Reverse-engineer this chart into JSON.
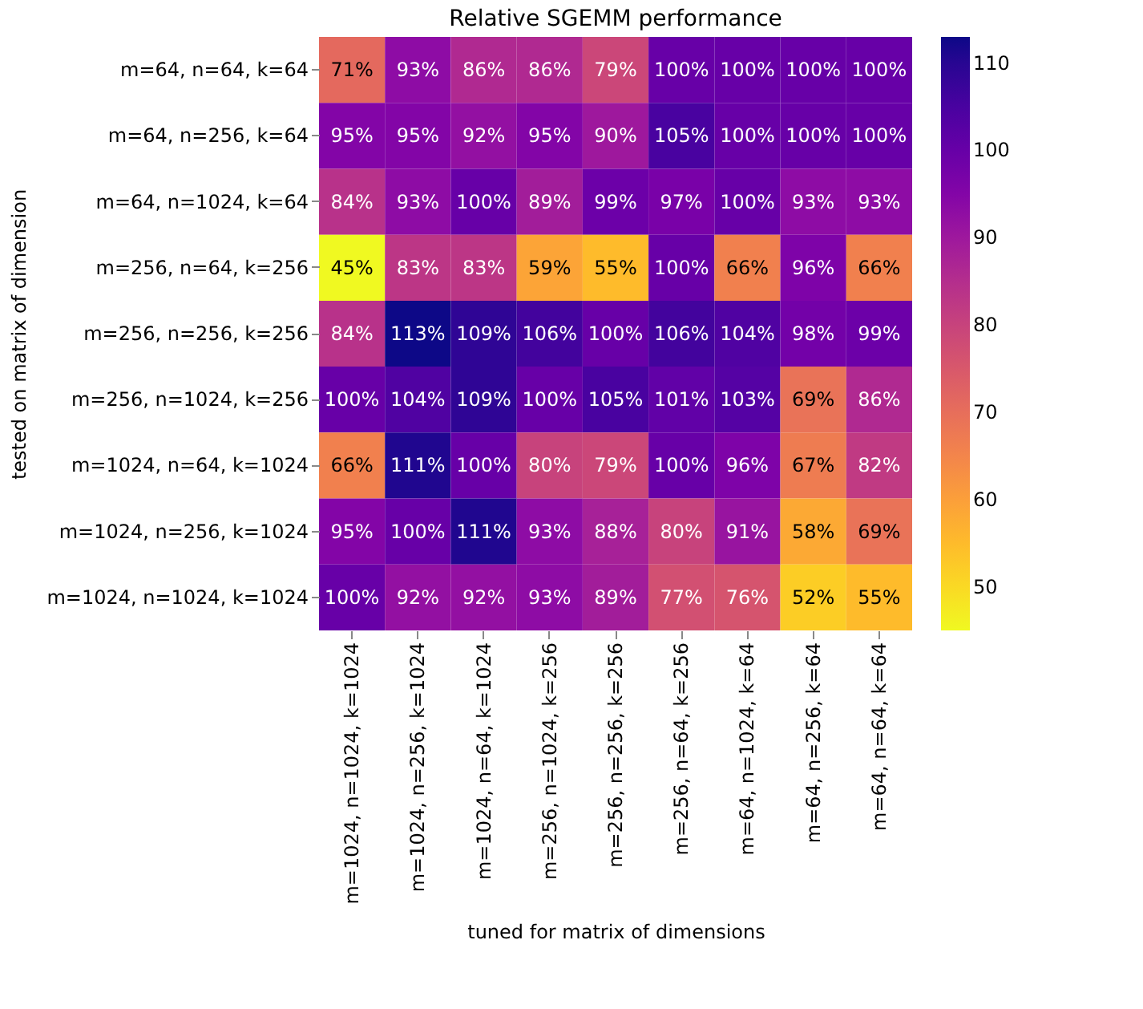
{
  "chart_data": {
    "type": "heatmap",
    "title": "Relative SGEMM performance",
    "xlabel": "tuned for matrix of dimensions",
    "ylabel": "tested on matrix of dimension",
    "categories": [
      "m=1024, n=1024, k=1024",
      "m=1024, n=256, k=1024",
      "m=1024, n=64, k=1024",
      "m=256, n=1024, k=256",
      "m=256, n=256, k=256",
      "m=256, n=64, k=256",
      "m=64, n=1024, k=64",
      "m=64, n=256, k=64",
      "m=64, n=64, k=64"
    ],
    "y_categories": [
      "m=64, n=64, k=64",
      "m=64, n=256, k=64",
      "m=64, n=1024, k=64",
      "m=256, n=64, k=256",
      "m=256, n=256, k=256",
      "m=256, n=1024, k=256",
      "m=1024, n=64, k=1024",
      "m=1024, n=256, k=1024",
      "m=1024, n=1024, k=1024"
    ],
    "cells": [
      [
        71,
        93,
        86,
        86,
        79,
        100,
        100,
        100,
        100
      ],
      [
        95,
        95,
        92,
        95,
        90,
        105,
        100,
        100,
        100
      ],
      [
        84,
        93,
        100,
        89,
        99,
        97,
        100,
        93,
        93
      ],
      [
        45,
        83,
        83,
        59,
        55,
        100,
        66,
        96,
        66
      ],
      [
        84,
        113,
        109,
        106,
        100,
        106,
        104,
        98,
        99
      ],
      [
        100,
        104,
        109,
        100,
        105,
        101,
        103,
        69,
        86
      ],
      [
        66,
        111,
        100,
        80,
        79,
        100,
        96,
        67,
        82
      ],
      [
        95,
        100,
        111,
        93,
        88,
        80,
        91,
        58,
        69
      ],
      [
        100,
        92,
        92,
        93,
        89,
        77,
        76,
        52,
        55
      ]
    ],
    "cell_labels": [
      [
        "71%",
        "93%",
        "86%",
        "86%",
        "79%",
        "100%",
        "100%",
        "100%",
        "100%"
      ],
      [
        "95%",
        "95%",
        "92%",
        "95%",
        "90%",
        "105%",
        "100%",
        "100%",
        "100%"
      ],
      [
        "84%",
        "93%",
        "100%",
        "89%",
        "99%",
        "97%",
        "100%",
        "93%",
        "93%"
      ],
      [
        "45%",
        "83%",
        "83%",
        "59%",
        "55%",
        "100%",
        "66%",
        "96%",
        "66%"
      ],
      [
        "84%",
        "113%",
        "109%",
        "106%",
        "100%",
        "106%",
        "104%",
        "98%",
        "99%"
      ],
      [
        "100%",
        "104%",
        "109%",
        "100%",
        "105%",
        "101%",
        "103%",
        "69%",
        "86%"
      ],
      [
        "66%",
        "111%",
        "100%",
        "80%",
        "79%",
        "100%",
        "96%",
        "67%",
        "82%"
      ],
      [
        "95%",
        "100%",
        "111%",
        "93%",
        "88%",
        "80%",
        "91%",
        "58%",
        "69%"
      ],
      [
        "100%",
        "92%",
        "92%",
        "93%",
        "89%",
        "77%",
        "76%",
        "52%",
        "55%"
      ]
    ],
    "clim": [
      45,
      113
    ],
    "cticks": [
      50,
      60,
      70,
      80,
      90,
      100,
      110
    ]
  }
}
